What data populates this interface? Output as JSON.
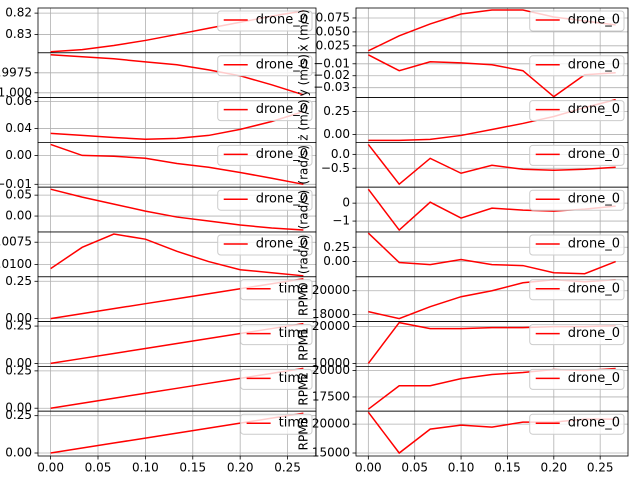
{
  "chart_data": {
    "type": "line",
    "x": [
      0,
      0.0333,
      0.0667,
      0.1,
      0.1333,
      0.1667,
      0.2,
      0.2333,
      0.2667
    ],
    "xlim": [
      -0.0133,
      0.28
    ],
    "xticks": [
      {
        "value": 0,
        "label": "0.00"
      },
      {
        "value": 0.05,
        "label": "0.05"
      },
      {
        "value": 0.1,
        "label": "0.10"
      },
      {
        "value": 0.15,
        "label": "0.15"
      },
      {
        "value": 0.2,
        "label": "0.20"
      },
      {
        "value": 0.25,
        "label": "0.25"
      }
    ],
    "grid": true,
    "legend": "upper right",
    "panels": [
      {
        "ylim": [
          0.8386,
          0.8176
        ],
        "yticks": [
          0.82,
          0.83
        ],
        "series": [
          {
            "name": "drone_0",
            "color": "#ff0000",
            "values": [
              0.8381,
              0.8371,
              0.8352,
              0.8328,
              0.83,
              0.8271,
              0.8243,
              0.8214,
              0.819
            ]
          }
        ]
      },
      {
        "ylim": [
          1.0006,
          0.995
        ],
        "yticks": [
          0.9975,
          {
            "value": 1,
            "label": "1.000"
          }
        ],
        "series": [
          {
            "name": "drone_0",
            "color": "#ff0000",
            "values": [
              0.99525,
              0.9955,
              0.99575,
              0.99613,
              0.9965,
              0.99713,
              0.99788,
              0.999,
              1.00025
            ]
          }
        ]
      },
      {
        "ylim": [
          0.0296,
          0.063
        ],
        "yticks": [
          0.04,
          0.06
        ],
        "series": [
          {
            "name": "drone_0",
            "color": "#ff0000",
            "values": [
              0.0363,
              0.0348,
              0.0333,
              0.0319,
              0.0326,
              0.0348,
              0.0393,
              0.0452,
              0.0526
            ]
          }
        ]
      },
      {
        "ylim": [
          -0.011,
          0.0045
        ],
        "yticks": [
          {
            "value": -0.01,
            "label": "−0.01"
          },
          {
            "value": 0,
            "label": "0.00"
          }
        ],
        "series": [
          {
            "name": "drone_0",
            "color": "#ff0000",
            "values": [
              0.0038,
              0,
              -0.0003,
              -0.001,
              -0.0028,
              -0.0041,
              -0.0059,
              -0.0079,
              -0.01
            ]
          }
        ]
      },
      {
        "ylim": [
          -0.0381,
          0.069
        ],
        "yticks": [
          {
            "value": 0,
            "label": "0.00"
          },
          0.05
        ],
        "series": [
          {
            "name": "drone_0",
            "color": "#ff0000",
            "values": [
              0.0643,
              0.0452,
              0.0286,
              0.0119,
              -0.0024,
              -0.0119,
              -0.0214,
              -0.0286,
              -0.0333
            ]
          }
        ]
      },
      {
        "ylim": [
          -0.01136,
          -0.00636
        ],
        "yticks": [
          {
            "value": -0.01,
            "label": "−0.0100"
          },
          {
            "value": -0.0075,
            "label": "−0.0075"
          }
        ],
        "series": [
          {
            "name": "drone_0",
            "color": "#ff0000",
            "values": [
              -0.01045,
              -0.00807,
              -0.00659,
              -0.00716,
              -0.00852,
              -0.00966,
              -0.01057,
              -0.01091,
              -0.01125
            ]
          }
        ]
      },
      {
        "ylim": [
          -0.02,
          0.28
        ],
        "yticks": [
          {
            "value": 0,
            "label": "0.00"
          },
          0.25
        ],
        "series": [
          {
            "name": "time",
            "color": "#ff0000",
            "values": [
              0,
              0.0333,
              0.0667,
              0.1,
              0.1333,
              0.1667,
              0.2,
              0.2333,
              0.2667
            ]
          }
        ]
      },
      {
        "ylim": [
          -0.02,
          0.28
        ],
        "yticks": [
          {
            "value": 0,
            "label": "0.00"
          },
          0.25
        ],
        "series": [
          {
            "name": "time",
            "color": "#ff0000",
            "values": [
              0,
              0.0333,
              0.0667,
              0.1,
              0.1333,
              0.1667,
              0.2,
              0.2333,
              0.2667
            ]
          }
        ]
      },
      {
        "ylim": [
          -0.02,
          0.28
        ],
        "yticks": [
          {
            "value": 0,
            "label": "0.00"
          },
          0.25
        ],
        "series": [
          {
            "name": "time",
            "color": "#ff0000",
            "values": [
              0,
              0.0333,
              0.0667,
              0.1,
              0.1333,
              0.1667,
              0.2,
              0.2333,
              0.2667
            ]
          }
        ]
      },
      {
        "ylim": [
          -0.02,
          0.28
        ],
        "yticks": [
          {
            "value": 0,
            "label": "0.00"
          },
          0.25
        ],
        "series": [
          {
            "name": "time",
            "color": "#ff0000",
            "values": [
              0,
              0.0333,
              0.0667,
              0.1,
              0.1333,
              0.1667,
              0.2,
              0.2333,
              0.2667
            ]
          }
        ]
      },
      {
        "ylabel": "ẋ (m/s)",
        "ylim": [
          0.0125,
          0.0929
        ],
        "yticks": [
          0.025,
          {
            "value": 0.05,
            "label": "0.050"
          },
          0.075
        ],
        "series": [
          {
            "name": "drone_0",
            "color": "#ff0000",
            "values": [
              0.0161,
              0.0429,
              0.0643,
              0.0821,
              0.0893,
              0.0893,
              0.0768,
              0.0696,
              0.0625
            ]
          }
        ]
      },
      {
        "ylabel": "ẏ (m/s)",
        "ylim": [
          -0.0383,
          -0.0008
        ],
        "yticks": [
          {
            "value": -0.03,
            "label": "−0.03"
          },
          {
            "value": -0.02,
            "label": "−0.02"
          },
          {
            "value": -0.01,
            "label": "−0.01"
          }
        ],
        "series": [
          {
            "name": "drone_0",
            "color": "#ff0000",
            "values": [
              -0.0025,
              -0.0158,
              -0.0083,
              -0.0092,
              -0.0108,
              -0.0158,
              -0.0375,
              -0.0192,
              -0.0175
            ]
          }
        ]
      },
      {
        "ylabel": "ż (m/s)",
        "ylim": [
          -0.087,
          0.402
        ],
        "yticks": [
          {
            "value": 0,
            "label": "0.00"
          },
          0.25
        ],
        "series": [
          {
            "name": "drone_0",
            "color": "#ff0000",
            "values": [
              -0.065,
              -0.065,
              -0.054,
              -0.011,
              0.054,
              0.12,
              0.196,
              0.293,
              0.38
            ]
          }
        ]
      },
      {
        "ylabel": "(rad/s)",
        "ylim": [
          -1.18,
          0.43
        ],
        "yticks": [
          {
            "value": -0.5,
            "label": "−0.5"
          },
          {
            "value": 0,
            "label": "0.0"
          }
        ],
        "series": [
          {
            "name": "drone_0",
            "color": "#ff0000",
            "values": [
              0.357,
              -1.071,
              -0.143,
              -0.679,
              -0.393,
              -0.536,
              -0.571,
              -0.536,
              -0.464
            ]
          }
        ]
      },
      {
        "ylabel": "(rad/s)",
        "ylim": [
          -1.61,
          0.89
        ],
        "yticks": [
          {
            "value": -1,
            "label": "−1"
          },
          0
        ],
        "series": [
          {
            "name": "drone_0",
            "color": "#ff0000",
            "values": [
              0.778,
              -1.5,
              0.056,
              -0.833,
              -0.278,
              -0.389,
              -0.444,
              -0.333,
              -0.167
            ]
          }
        ]
      },
      {
        "ylabel": "(rad/s)",
        "ylim": [
          -0.268,
          0.518
        ],
        "yticks": [
          {
            "value": 0,
            "label": "0.00"
          },
          0.25
        ],
        "series": [
          {
            "name": "drone_0",
            "color": "#ff0000",
            "values": [
              0.5,
              -0.018,
              -0.054,
              0.036,
              -0.054,
              -0.071,
              -0.196,
              -0.214,
              0
            ]
          }
        ]
      },
      {
        "ylabel": "RPM0",
        "ylim": [
          17417,
          21167
        ],
        "yticks": [
          18000,
          20000
        ],
        "series": [
          {
            "name": "drone_0",
            "color": "#ff0000",
            "values": [
              18250,
              17667,
              18667,
              19500,
              20000,
              20667,
              20917,
              20750,
              20917
            ]
          }
        ]
      },
      {
        "ylabel": "RPM1",
        "ylim": [
          9189,
          21351
        ],
        "yticks": [
          10000,
          20000
        ],
        "series": [
          {
            "name": "drone_0",
            "color": "#ff0000",
            "values": [
              10000,
              21081,
              19459,
              19459,
              19730,
              19730,
              20000,
              20000,
              20270
            ]
          }
        ]
      },
      {
        "ylabel": "RPM2",
        "ylim": [
          16154,
          20385
        ],
        "yticks": [
          17500,
          20000
        ],
        "series": [
          {
            "name": "drone_0",
            "color": "#ff0000",
            "values": [
              16346,
              18558,
              18558,
              19231,
              19615,
              19808,
              20096,
              20000,
              20192
            ]
          }
        ]
      },
      {
        "ylabel": "RPM3",
        "ylim": [
          14483,
          22241
        ],
        "yticks": [
          15000,
          20000
        ],
        "series": [
          {
            "name": "drone_0",
            "color": "#ff0000",
            "values": [
              22069,
              15000,
              19138,
              19828,
              19483,
              20345,
              20345,
              20862,
              20862
            ]
          }
        ]
      }
    ]
  }
}
